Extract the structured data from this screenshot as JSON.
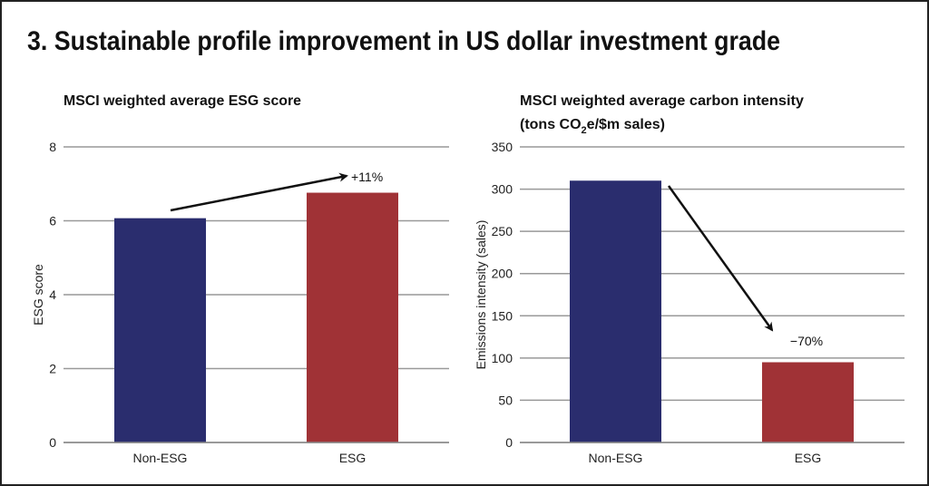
{
  "title": "3. Sustainable profile improvement in US dollar investment grade",
  "chart_data": [
    {
      "type": "bar",
      "title": "MSCI weighted average ESG score",
      "ylabel": "ESG score",
      "xlabel": "",
      "categories": [
        "Non-ESG",
        "ESG"
      ],
      "values": [
        6.07,
        6.76
      ],
      "colors": [
        "#2a2d6e",
        "#a03236"
      ],
      "ylim": [
        0,
        8
      ],
      "yticks": [
        0,
        2,
        4,
        6,
        8
      ],
      "grid": true,
      "annotation": "+11%"
    },
    {
      "type": "bar",
      "title_line1": "MSCI weighted average carbon intensity",
      "title_line2_pre": "(tons CO",
      "title_line2_sub": "2",
      "title_line2_post": "e/$m sales)",
      "ylabel": "Emissions intensity (sales)",
      "xlabel": "",
      "categories": [
        "Non-ESG",
        "ESG"
      ],
      "values": [
        310,
        95
      ],
      "colors": [
        "#2a2d6e",
        "#a03236"
      ],
      "ylim": [
        0,
        350
      ],
      "yticks": [
        0,
        50,
        100,
        150,
        200,
        250,
        300,
        350
      ],
      "grid": true,
      "annotation": "−70%"
    }
  ]
}
